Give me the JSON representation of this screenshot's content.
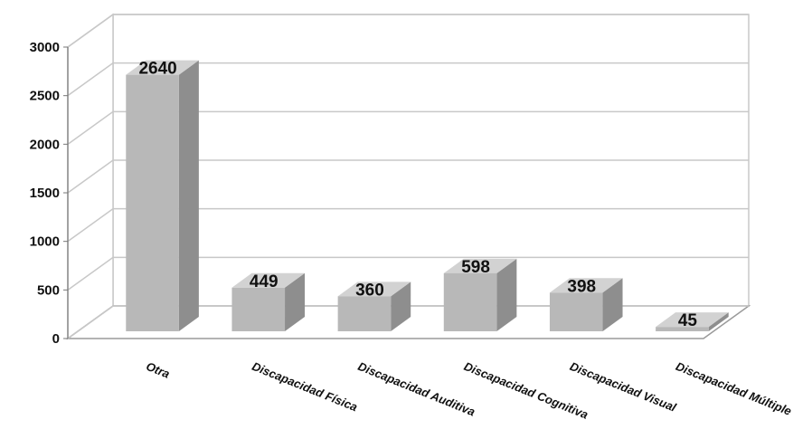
{
  "chart_data": {
    "type": "bar",
    "categories": [
      "Otra",
      "Discapacidad Física",
      "Discapacidad Auditiva",
      "Discapacidad Cognitiva",
      "Discapacidad Visual",
      "Discapacidad Múltiple"
    ],
    "values": [
      2640,
      449,
      360,
      598,
      398,
      45
    ],
    "value_labels": [
      "2640",
      "449",
      "360",
      "598",
      "398",
      "45"
    ],
    "yticks": [
      0,
      500,
      1000,
      1500,
      2000,
      2500,
      3000
    ],
    "ytick_labels": [
      "0",
      "500",
      "1000",
      "1500",
      "2000",
      "2500",
      "3000"
    ],
    "ylim": [
      0,
      3000
    ],
    "grid": true,
    "legend": "none",
    "style": "3d-column",
    "colors": {
      "bar_front": "#b8b8b8",
      "bar_side": "#8e8e8e",
      "bar_top": "#d2d2d2",
      "grid": "#c8c8c8",
      "wall": "#ffffff"
    }
  }
}
